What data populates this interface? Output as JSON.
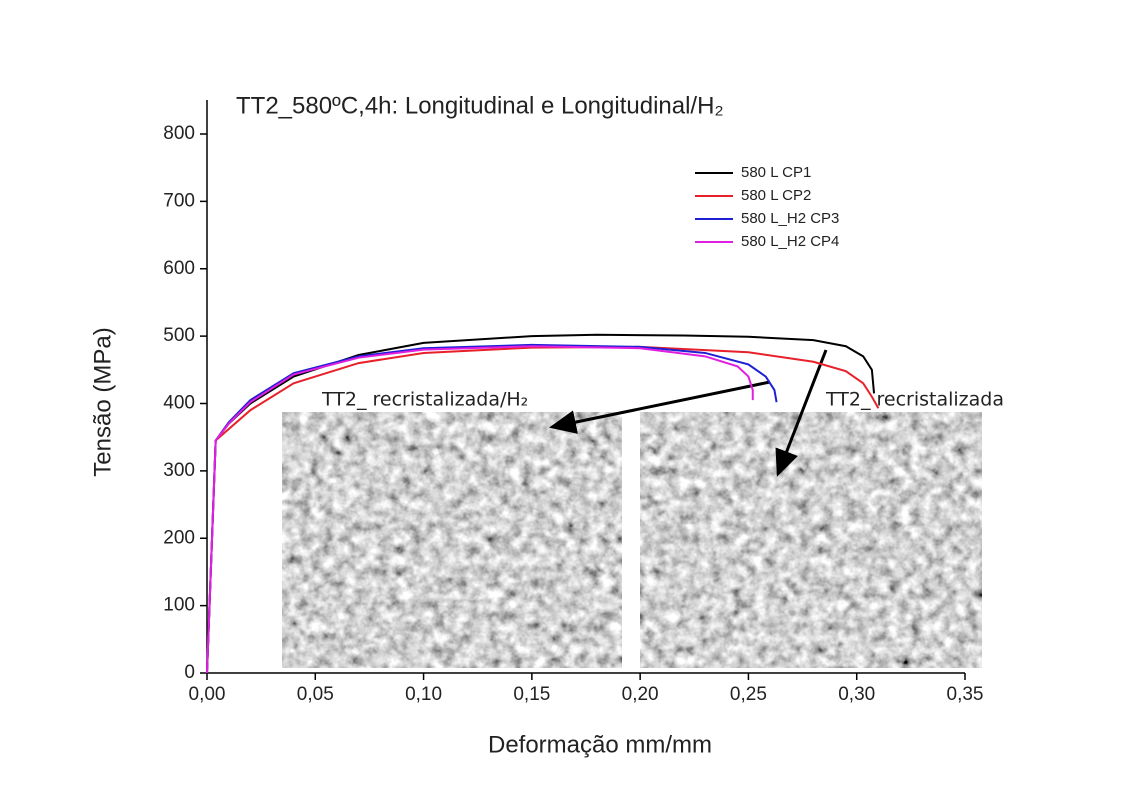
{
  "chart_data": {
    "type": "line",
    "title": "TT2_580ºC,4h: Longitudinal e Longitudinal/H₂",
    "x_label": "Deformação mm/mm",
    "y_label": "Tensão (MPa)",
    "xlim": [
      0,
      0.35
    ],
    "ylim": [
      0,
      800
    ],
    "xticks": [
      {
        "value": 0,
        "label": "0,00"
      },
      {
        "value": 0.05,
        "label": "0,05"
      },
      {
        "value": 0.1,
        "label": "0,10"
      },
      {
        "value": 0.15,
        "label": "0,15"
      },
      {
        "value": 0.2,
        "label": "0,20"
      },
      {
        "value": 0.25,
        "label": "0,25"
      },
      {
        "value": 0.3,
        "label": "0,30"
      },
      {
        "value": 0.35,
        "label": "0,35"
      }
    ],
    "yticks": [
      0,
      100,
      200,
      300,
      400,
      500,
      600,
      700,
      800
    ],
    "legend": "upper right",
    "series": [
      {
        "name": "580 L CP1",
        "color": "#000000",
        "x": [
          0,
          0.004,
          0.01,
          0.02,
          0.04,
          0.07,
          0.1,
          0.15,
          0.18,
          0.22,
          0.25,
          0.28,
          0.295,
          0.303,
          0.307,
          0.308
        ],
        "values": [
          0,
          345,
          370,
          400,
          440,
          472,
          490,
          500,
          502,
          501,
          499,
          494,
          485,
          470,
          450,
          415
        ]
      },
      {
        "name": "580 L CP2",
        "color": "#e8202a",
        "x": [
          0,
          0.004,
          0.01,
          0.02,
          0.04,
          0.07,
          0.1,
          0.15,
          0.2,
          0.25,
          0.28,
          0.295,
          0.303,
          0.307,
          0.31
        ],
        "values": [
          0,
          345,
          362,
          390,
          430,
          460,
          475,
          483,
          484,
          476,
          462,
          448,
          430,
          410,
          393
        ]
      },
      {
        "name": "580 L_H2 CP3",
        "color": "#1f1fd6",
        "x": [
          0,
          0.004,
          0.01,
          0.02,
          0.04,
          0.07,
          0.1,
          0.15,
          0.2,
          0.23,
          0.25,
          0.258,
          0.262,
          0.263
        ],
        "values": [
          0,
          345,
          372,
          405,
          445,
          470,
          482,
          487,
          484,
          475,
          458,
          440,
          420,
          402
        ]
      },
      {
        "name": "580 L_H2 CP4",
        "color": "#e01fe0",
        "x": [
          0,
          0.004,
          0.01,
          0.02,
          0.04,
          0.07,
          0.1,
          0.15,
          0.2,
          0.23,
          0.245,
          0.25,
          0.252,
          0.252
        ],
        "values": [
          0,
          345,
          370,
          402,
          443,
          468,
          480,
          485,
          482,
          470,
          455,
          440,
          420,
          405
        ]
      }
    ],
    "annotations": [
      "TT2_  recristalizada/H₂",
      "TT2_  recristalizada"
    ]
  }
}
